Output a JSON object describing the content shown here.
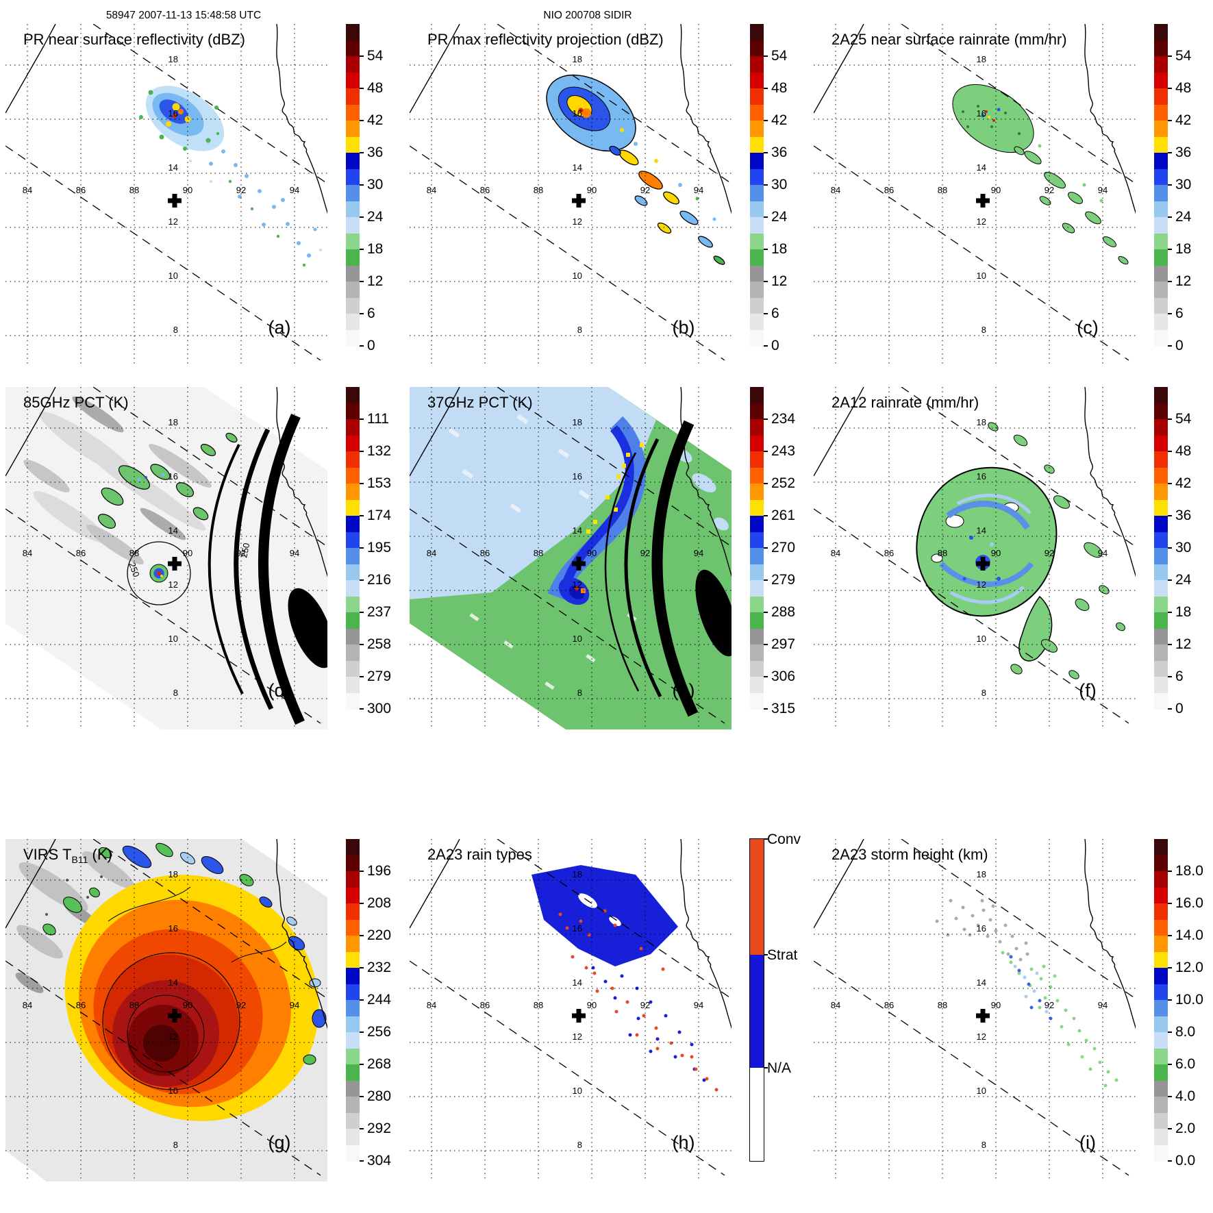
{
  "header": {
    "left": "58947 2007-11-13 15:48:58 UTC",
    "center": "NIO 200708 SIDIR"
  },
  "axes": {
    "lon_labels": [
      "84",
      "86",
      "88",
      "90",
      "92",
      "94"
    ],
    "lat_labels": [
      "18",
      "16",
      "14",
      "12",
      "10",
      "8"
    ]
  },
  "palette": [
    "#3a0808",
    "#5e0000",
    "#a80000",
    "#d40000",
    "#f03000",
    "#ff6000",
    "#ff9800",
    "#ffe000",
    "#0008c8",
    "#2244ee",
    "#5590e8",
    "#96c8f0",
    "#c8ddf6",
    "#8cd68c",
    "#4cb44c",
    "#969696",
    "#b4b4b4",
    "#cfcfcf",
    "#e6e6e6",
    "#f8f8f8"
  ],
  "rain_type_colors": {
    "convective": "#e8491d",
    "stratiform": "#1515d8",
    "not_applicable": "#ffffff"
  },
  "panels": [
    {
      "letter": "(a)",
      "title": "PR near surface reflectivity (dBZ)",
      "colorbar": {
        "ticks": [
          "54",
          "48",
          "42",
          "36",
          "30",
          "24",
          "18",
          "12",
          "6",
          "0"
        ]
      }
    },
    {
      "letter": "(b)",
      "title": "PR max reflectivity projection (dBZ)",
      "colorbar": {
        "ticks": [
          "54",
          "48",
          "42",
          "36",
          "30",
          "24",
          "18",
          "12",
          "6",
          "0"
        ]
      }
    },
    {
      "letter": "(c)",
      "title": "2A25 near surface rainrate (mm/hr)",
      "colorbar": {
        "ticks": [
          "54",
          "48",
          "42",
          "36",
          "30",
          "24",
          "18",
          "12",
          "6",
          "0"
        ]
      }
    },
    {
      "letter": "(d)",
      "title": "85GHz PCT (K)",
      "contour_label": "250",
      "colorbar": {
        "ticks": [
          "111",
          "132",
          "153",
          "174",
          "195",
          "216",
          "237",
          "258",
          "279",
          "300"
        ]
      }
    },
    {
      "letter": "(e)",
      "title": "37GHz PCT (K)",
      "colorbar": {
        "ticks": [
          "234",
          "243",
          "252",
          "261",
          "270",
          "279",
          "288",
          "297",
          "306",
          "315"
        ]
      }
    },
    {
      "letter": "(f)",
      "title": "2A12 rainrate (mm/hr)",
      "colorbar": {
        "ticks": [
          "54",
          "48",
          "42",
          "36",
          "30",
          "24",
          "18",
          "12",
          "6",
          "0"
        ]
      }
    },
    {
      "letter": "(g)",
      "title_prefix": "VIRS T",
      "title_sub": "B11",
      "title_suffix": " (K)",
      "colorbar": {
        "ticks": [
          "196",
          "208",
          "220",
          "232",
          "244",
          "256",
          "268",
          "280",
          "292",
          "304"
        ]
      }
    },
    {
      "letter": "(h)",
      "title": "2A23 rain types",
      "colorbar": {
        "segments": [
          {
            "label": "Conv",
            "color": "#e8491d",
            "height_pct": 36
          },
          {
            "label": "Strat",
            "color": "#1515d8",
            "height_pct": 35
          },
          {
            "label": "N/A",
            "color": "#ffffff",
            "height_pct": 29
          }
        ]
      }
    },
    {
      "letter": "(i)",
      "title": "2A23 storm height (km)",
      "colorbar": {
        "ticks": [
          "18.0",
          "16.0",
          "14.0",
          "12.0",
          "10.0",
          "8.0",
          "6.0",
          "4.0",
          "2.0",
          "0.0"
        ]
      }
    }
  ],
  "chart_data": {
    "type": "heatmap",
    "figure": "TRMM satellite overpass multi-panel figure",
    "overpass_header": "58947 2007-11-13 15:48:58 UTC",
    "storm_header": "NIO 200708 SIDIR",
    "geo": {
      "lon_ticks": [
        84,
        86,
        88,
        90,
        92,
        94
      ],
      "lat_ticks": [
        18,
        16,
        14,
        12,
        10,
        8
      ],
      "lon_range": [
        83.5,
        95.5
      ],
      "lat_range": [
        6.5,
        18.5
      ],
      "storm_center": {
        "lon": 89.5,
        "lat": 13.4
      },
      "grid": "dotted 2-degree graticule, dashed PR swath edges, coastlines drawn"
    },
    "panels": [
      {
        "panel": "a",
        "title": "PR near surface reflectivity (dBZ)",
        "units": "dBZ",
        "colorbar_ticks": [
          54,
          48,
          42,
          36,
          30,
          24,
          18,
          12,
          6,
          0
        ],
        "colorbar_range": [
          0,
          60
        ]
      },
      {
        "panel": "b",
        "title": "PR max reflectivity projection (dBZ)",
        "units": "dBZ",
        "colorbar_ticks": [
          54,
          48,
          42,
          36,
          30,
          24,
          18,
          12,
          6,
          0
        ],
        "colorbar_range": [
          0,
          60
        ]
      },
      {
        "panel": "c",
        "title": "2A25 near surface rainrate (mm/hr)",
        "units": "mm/hr",
        "colorbar_ticks": [
          54,
          48,
          42,
          36,
          30,
          24,
          18,
          12,
          6,
          0
        ],
        "colorbar_range": [
          0,
          60
        ]
      },
      {
        "panel": "d",
        "title": "85GHz PCT (K)",
        "units": "K",
        "colorbar_ticks": [
          111,
          132,
          153,
          174,
          195,
          216,
          237,
          258,
          279,
          300
        ],
        "colorbar_range": [
          90,
          300
        ],
        "contour_label": 250
      },
      {
        "panel": "e",
        "title": "37GHz PCT (K)",
        "units": "K",
        "colorbar_ticks": [
          234,
          243,
          252,
          261,
          270,
          279,
          288,
          297,
          306,
          315
        ],
        "colorbar_range": [
          225,
          315
        ]
      },
      {
        "panel": "f",
        "title": "2A12 rainrate (mm/hr)",
        "units": "mm/hr",
        "colorbar_ticks": [
          54,
          48,
          42,
          36,
          30,
          24,
          18,
          12,
          6,
          0
        ],
        "colorbar_range": [
          0,
          60
        ]
      },
      {
        "panel": "g",
        "title": "VIRS T_B11 (K)",
        "units": "K",
        "colorbar_ticks": [
          196,
          208,
          220,
          232,
          244,
          256,
          268,
          280,
          292,
          304
        ],
        "colorbar_range": [
          184,
          304
        ]
      },
      {
        "panel": "h",
        "title": "2A23 rain types",
        "units": "category",
        "categories": [
          "Conv",
          "Strat",
          "N/A"
        ]
      },
      {
        "panel": "i",
        "title": "2A23 storm height (km)",
        "units": "km",
        "colorbar_ticks": [
          18.0,
          16.0,
          14.0,
          12.0,
          10.0,
          8.0,
          6.0,
          4.0,
          2.0,
          0.0
        ],
        "colorbar_range": [
          0,
          20
        ]
      }
    ]
  }
}
